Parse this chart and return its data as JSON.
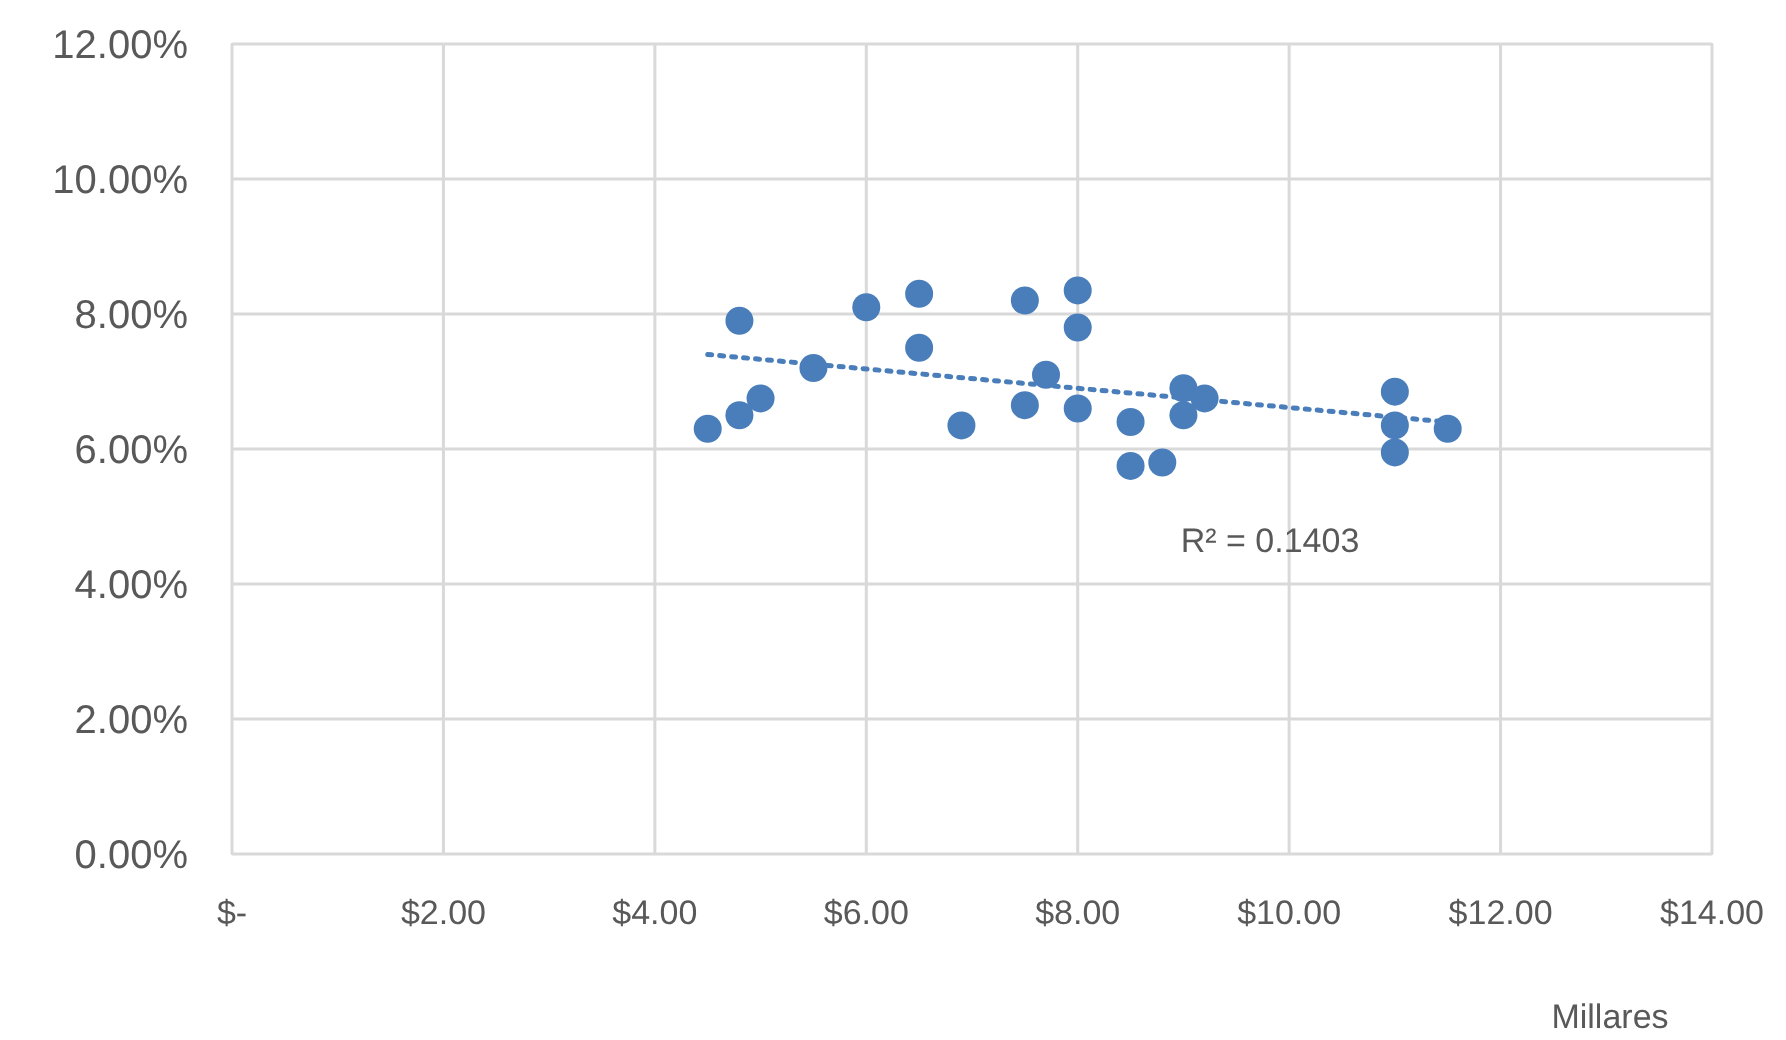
{
  "chart_data": {
    "type": "scatter",
    "xlabel": "Millares",
    "xlim": [
      0,
      14
    ],
    "ylim": [
      0,
      12
    ],
    "xticks": [
      {
        "value": 0,
        "label": "$-"
      },
      {
        "value": 2,
        "label": "$2.00"
      },
      {
        "value": 4,
        "label": "$4.00"
      },
      {
        "value": 6,
        "label": "$6.00"
      },
      {
        "value": 8,
        "label": "$8.00"
      },
      {
        "value": 10,
        "label": "$10.00"
      },
      {
        "value": 12,
        "label": "$12.00"
      },
      {
        "value": 14,
        "label": "$14.00"
      }
    ],
    "yticks": [
      {
        "value": 0,
        "label": "0.00%"
      },
      {
        "value": 2,
        "label": "2.00%"
      },
      {
        "value": 4,
        "label": "4.00%"
      },
      {
        "value": 6,
        "label": "6.00%"
      },
      {
        "value": 8,
        "label": "8.00%"
      },
      {
        "value": 10,
        "label": "10.00%"
      },
      {
        "value": 12,
        "label": "12.00%"
      }
    ],
    "grid": true,
    "series": [
      {
        "color": "#4a7ebb",
        "marker": "circle",
        "x": [
          4.5,
          4.8,
          5.0,
          4.8,
          5.5,
          6.0,
          6.5,
          6.5,
          6.9,
          7.5,
          7.5,
          7.7,
          8.0,
          8.0,
          8.0,
          8.5,
          8.5,
          8.8,
          9.0,
          9.0,
          9.2,
          11.0,
          11.0,
          11.0,
          11.5
        ],
        "values": [
          6.3,
          6.5,
          6.75,
          7.9,
          7.2,
          8.1,
          8.3,
          7.5,
          6.35,
          8.2,
          6.65,
          7.1,
          8.35,
          7.8,
          6.6,
          6.4,
          5.75,
          5.8,
          6.9,
          6.5,
          6.75,
          6.85,
          6.35,
          5.95,
          6.3
        ]
      },
      {
        "type": "line",
        "color": "#4a7ebb",
        "marker": "none",
        "line_style": "dotted",
        "x": [
          4.5,
          11.5
        ],
        "values": [
          7.4,
          6.4
        ]
      }
    ],
    "annotations": [
      "R² = 0.1403"
    ]
  }
}
